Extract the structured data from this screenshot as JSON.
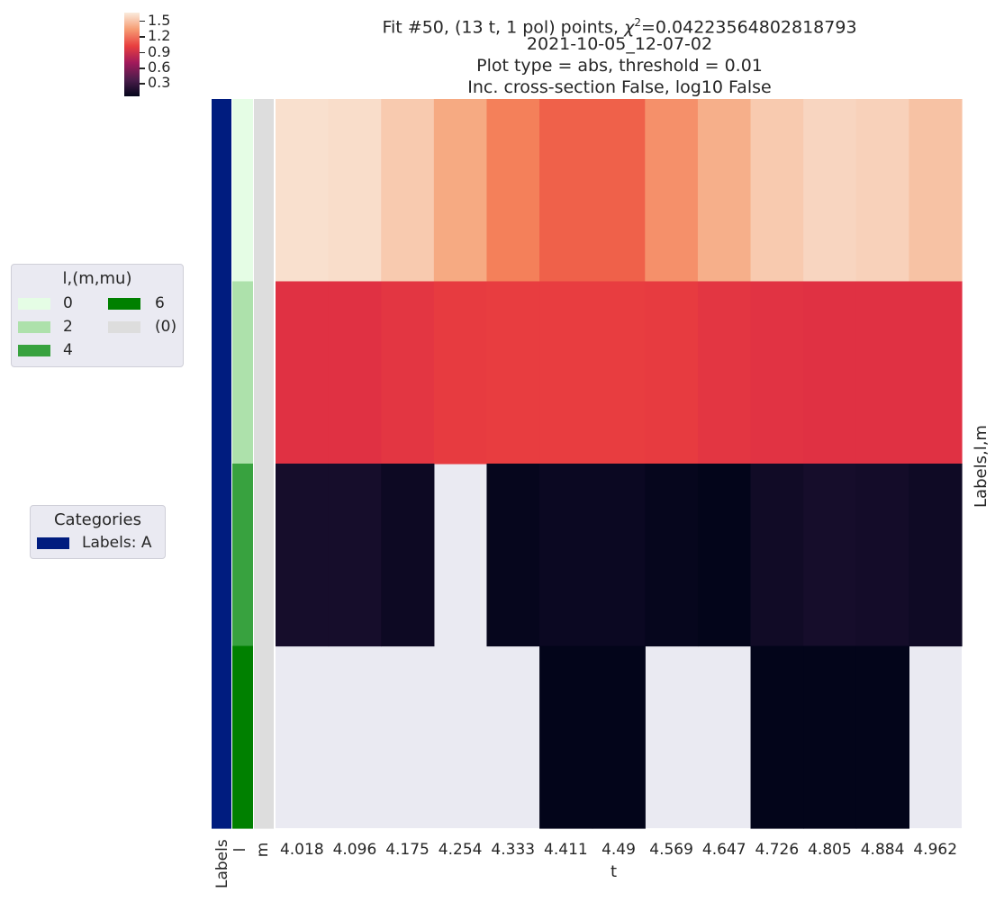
{
  "title": {
    "fit_prefix": "Fit #50, (13 t, 1 pol) points, ",
    "chi_symbol": "χ",
    "chi_exponent": "2",
    "chi_value": "=0.04223564802818793",
    "line2": "2021-10-05_12-07-02",
    "line3": "Plot type = abs, threshold = 0.01",
    "line4": "Inc. cross-section False, log10 False"
  },
  "colorbar": {
    "ticks": [
      "1.5",
      "1.2",
      "0.9",
      "0.6",
      "0.3"
    ],
    "tick_values": [
      1.5,
      1.2,
      0.9,
      0.6,
      0.3
    ],
    "range": [
      0.05,
      1.65
    ],
    "colormap": "rocket"
  },
  "row_color_bars": [
    {
      "label": "Labels",
      "colors": [
        "#001c7f",
        "#001c7f",
        "#001c7f",
        "#001c7f"
      ]
    },
    {
      "label": "l",
      "colors": [
        "#e5fde5",
        "#ade1ab",
        "#38a23f",
        "#008000"
      ]
    },
    {
      "label": "m",
      "colors": [
        "#dddddd",
        "#dddddd",
        "#dddddd",
        "#dddddd"
      ]
    }
  ],
  "legends": [
    {
      "title": "l,(m,mu)",
      "items": [
        {
          "label": "0",
          "color": "#e5fde5"
        },
        {
          "label": "2",
          "color": "#ade1ab"
        },
        {
          "label": "4",
          "color": "#38a23f"
        },
        {
          "label": "6",
          "color": "#008000"
        },
        {
          "label": "(0)",
          "color": "#dddddd"
        }
      ]
    },
    {
      "title": "Categories",
      "items": [
        {
          "label": "Labels: A",
          "color": "#001c7f"
        }
      ]
    }
  ],
  "chart_data": {
    "type": "heatmap",
    "xlabel": "t",
    "ylabel": "Labels,l,m",
    "x": [
      "4.018",
      "4.096",
      "4.175",
      "4.254",
      "4.333",
      "4.411",
      "4.49",
      "4.569",
      "4.647",
      "4.726",
      "4.805",
      "4.884",
      "4.962"
    ],
    "rows": [
      "l=0",
      "l=2",
      "l=4",
      "l=6"
    ],
    "colormap": "rocket",
    "vmin": 0.05,
    "vmax": 1.65,
    "missing_color": "#eaeaf2",
    "values": [
      [
        1.57,
        1.55,
        1.45,
        1.33,
        1.2,
        1.12,
        1.12,
        1.25,
        1.35,
        1.45,
        1.5,
        1.48,
        1.42
      ],
      [
        0.96,
        0.96,
        0.99,
        1.02,
        1.03,
        1.03,
        1.03,
        1.02,
        0.99,
        0.97,
        0.96,
        0.96,
        0.96
      ],
      [
        0.16,
        0.16,
        0.11,
        null,
        0.07,
        0.1,
        0.1,
        0.07,
        0.05,
        0.13,
        0.16,
        0.15,
        0.12
      ],
      [
        null,
        null,
        null,
        null,
        null,
        0.05,
        0.05,
        null,
        null,
        0.05,
        0.05,
        0.05,
        null
      ]
    ]
  }
}
